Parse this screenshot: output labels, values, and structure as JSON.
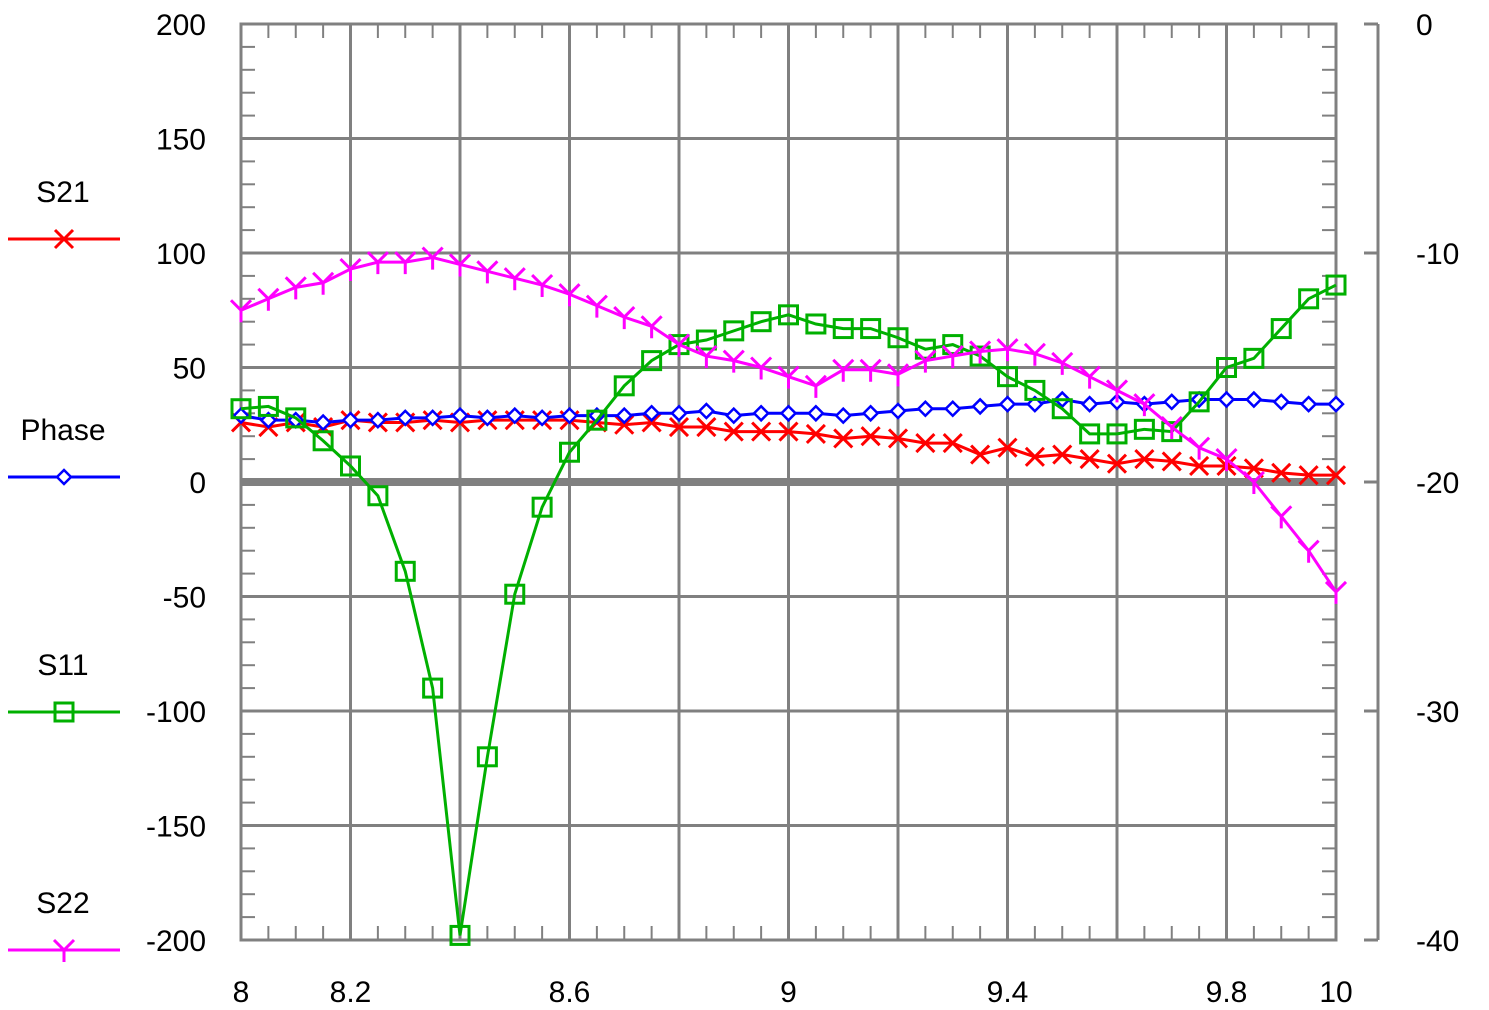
{
  "chart_data": {
    "type": "line",
    "x_ticks": [
      "8",
      "8.2",
      "8.6",
      "9",
      "9.4",
      "9.8",
      "10"
    ],
    "x_tick_values": [
      8,
      8.2,
      8.6,
      9,
      9.4,
      9.8,
      10
    ],
    "xlim": [
      8,
      10
    ],
    "left_axis": {
      "ylim": [
        -200,
        200
      ],
      "ticks": [
        "200",
        "150",
        "100",
        "50",
        "0",
        "-50",
        "-100",
        "-150",
        "-200"
      ],
      "tick_values": [
        200,
        150,
        100,
        50,
        0,
        -50,
        -100,
        -150,
        -200
      ]
    },
    "right_axis": {
      "ylim": [
        -40,
        0
      ],
      "ticks": [
        "0",
        "-10",
        "-20",
        "-30",
        "-40"
      ],
      "tick_values": [
        0,
        -10,
        -20,
        -30,
        -40
      ]
    },
    "grid": true,
    "legend_position": "left",
    "x": [
      8.0,
      8.05,
      8.1,
      8.15,
      8.2,
      8.25,
      8.3,
      8.35,
      8.4,
      8.45,
      8.5,
      8.55,
      8.6,
      8.65,
      8.7,
      8.75,
      8.8,
      8.85,
      8.9,
      8.95,
      9.0,
      9.05,
      9.1,
      9.15,
      9.2,
      9.25,
      9.3,
      9.35,
      9.4,
      9.45,
      9.5,
      9.55,
      9.6,
      9.65,
      9.7,
      9.75,
      9.8,
      9.85,
      9.9,
      9.95,
      10.0
    ],
    "series": [
      {
        "name": "S21",
        "axis": "right",
        "color": "#ff0000",
        "marker": "x",
        "values": [
          -17.4,
          -17.6,
          -17.4,
          -17.6,
          -17.3,
          -17.4,
          -17.4,
          -17.3,
          -17.4,
          -17.3,
          -17.3,
          -17.3,
          -17.3,
          -17.4,
          -17.5,
          -17.4,
          -17.6,
          -17.6,
          -17.8,
          -17.8,
          -17.8,
          -17.9,
          -18.1,
          -18.0,
          -18.1,
          -18.3,
          -18.3,
          -18.8,
          -18.5,
          -18.9,
          -18.8,
          -19.0,
          -19.2,
          -19.0,
          -19.1,
          -19.3,
          -19.3,
          -19.4,
          -19.6,
          -19.7,
          -19.7
        ]
      },
      {
        "name": "Phase",
        "axis": "right",
        "color": "#0000ff",
        "marker": "diamond",
        "values": [
          -17.1,
          -17.3,
          -17.3,
          -17.4,
          -17.3,
          -17.3,
          -17.2,
          -17.2,
          -17.1,
          -17.2,
          -17.1,
          -17.2,
          -17.1,
          -17.1,
          -17.1,
          -17.0,
          -17.0,
          -16.9,
          -17.1,
          -17.0,
          -17.0,
          -17.0,
          -17.1,
          -17.0,
          -16.9,
          -16.8,
          -16.8,
          -16.7,
          -16.6,
          -16.6,
          -16.4,
          -16.6,
          -16.5,
          -16.6,
          -16.5,
          -16.4,
          -16.4,
          -16.4,
          -16.5,
          -16.6,
          -16.6
        ]
      },
      {
        "name": "S11",
        "axis": "left",
        "color": "#00b000",
        "marker": "square",
        "values": [
          32,
          33,
          28,
          18,
          7,
          -6,
          -39,
          -90,
          -198,
          -120,
          -49,
          -11,
          13,
          27,
          42,
          53,
          60,
          62,
          66,
          70,
          73,
          69,
          67,
          67,
          63,
          58,
          60,
          55,
          46,
          40,
          32,
          21,
          21,
          23,
          22,
          35,
          50,
          54,
          67,
          80,
          86
        ]
      },
      {
        "name": "S22",
        "axis": "right",
        "color": "#ff00ff",
        "marker": "y",
        "values": [
          -12.5,
          -12.0,
          -11.5,
          -11.3,
          -10.7,
          -10.4,
          -10.4,
          -10.2,
          -10.5,
          -10.8,
          -11.1,
          -11.4,
          -11.8,
          -12.3,
          -12.8,
          -13.2,
          -14.0,
          -14.5,
          -14.7,
          -15.0,
          -15.4,
          -15.8,
          -15.1,
          -15.1,
          -15.3,
          -14.7,
          -14.5,
          -14.3,
          -14.2,
          -14.4,
          -14.8,
          -15.4,
          -16.0,
          -16.6,
          -17.6,
          -18.5,
          -19.0,
          -20.0,
          -21.5,
          -23.0,
          -24.8
        ]
      }
    ]
  }
}
